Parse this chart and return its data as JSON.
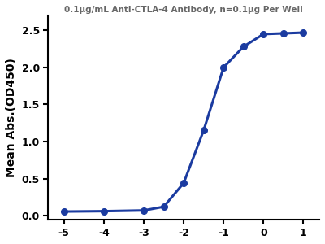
{
  "title": "0.1μg/mL Anti-CTLA-4 Antibody, n=0.1μg Per Well",
  "xlabel": "",
  "ylabel": "Mean Abs.(OD450)",
  "line_color": "#1B3BA0",
  "marker_color": "#1B3BA0",
  "x_data": [
    -5,
    -4,
    -3,
    -2.5,
    -2,
    -1.5,
    -1,
    -0.5,
    0,
    0.5,
    1
  ],
  "y_data": [
    0.055,
    0.06,
    0.07,
    0.12,
    0.44,
    1.15,
    2.0,
    2.28,
    2.45,
    2.46,
    2.47
  ],
  "xlim": [
    -5.4,
    1.4
  ],
  "ylim": [
    -0.05,
    2.7
  ],
  "xticks": [
    -5,
    -4,
    -3,
    -2,
    -1,
    0,
    1
  ],
  "xtick_labels": [
    "-5",
    "-4",
    "-3",
    "-2",
    "-1",
    "0",
    "1"
  ],
  "yticks": [
    0.0,
    0.5,
    1.0,
    1.5,
    2.0,
    2.5
  ],
  "background_color": "#ffffff",
  "title_fontsize": 7.5,
  "axis_fontsize": 10,
  "tick_fontsize": 9,
  "linewidth": 2.2,
  "markersize": 5.5,
  "sigmoid_ec50": -1.8,
  "sigmoid_hill": 1.5
}
